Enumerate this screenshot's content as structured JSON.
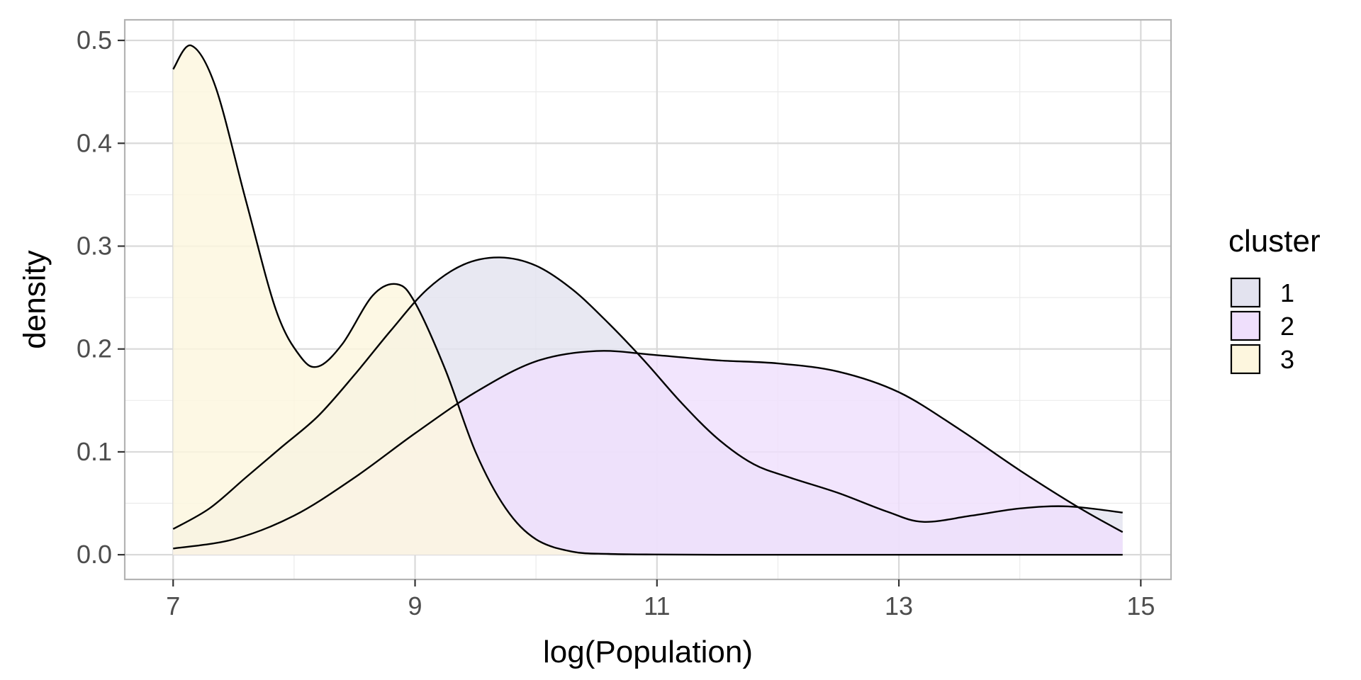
{
  "chart_data": {
    "type": "area",
    "xlabel": "log(Population)",
    "ylabel": "density",
    "xlim": [
      6.6,
      15.25
    ],
    "ylim": [
      -0.024,
      0.52
    ],
    "x_ticks": [
      7,
      9,
      11,
      13,
      15
    ],
    "x_tick_labels": [
      "7",
      "9",
      "11",
      "13",
      "15"
    ],
    "y_ticks": [
      0.0,
      0.1,
      0.2,
      0.3,
      0.4,
      0.5
    ],
    "y_tick_labels": [
      "0.0",
      "0.1",
      "0.2",
      "0.3",
      "0.4",
      "0.5"
    ],
    "grid": true,
    "legend": {
      "title": "cluster",
      "position": "right",
      "entries": [
        "1",
        "2",
        "3"
      ]
    },
    "series": [
      {
        "name": "1",
        "color": "#e3e3ef",
        "x": [
          7.0,
          7.3,
          7.6,
          7.9,
          8.2,
          8.5,
          8.8,
          9.1,
          9.4,
          9.7,
          10.0,
          10.3,
          10.6,
          10.9,
          11.2,
          11.5,
          11.8,
          12.1,
          12.5,
          12.9,
          13.2,
          13.6,
          14.0,
          14.4,
          14.85
        ],
        "y": [
          0.025,
          0.045,
          0.075,
          0.105,
          0.135,
          0.175,
          0.218,
          0.258,
          0.282,
          0.289,
          0.281,
          0.258,
          0.225,
          0.188,
          0.148,
          0.113,
          0.088,
          0.075,
          0.06,
          0.042,
          0.032,
          0.038,
          0.045,
          0.047,
          0.041
        ]
      },
      {
        "name": "2",
        "color": "#efdffc",
        "x": [
          7.0,
          7.5,
          8.0,
          8.5,
          9.0,
          9.5,
          10.0,
          10.5,
          11.0,
          11.5,
          12.0,
          12.5,
          13.0,
          13.5,
          14.0,
          14.5,
          14.85
        ],
        "y": [
          0.006,
          0.015,
          0.038,
          0.075,
          0.118,
          0.158,
          0.188,
          0.198,
          0.194,
          0.189,
          0.186,
          0.178,
          0.158,
          0.122,
          0.082,
          0.045,
          0.022
        ]
      },
      {
        "name": "3",
        "color": "#fdf6de",
        "x": [
          7.0,
          7.15,
          7.35,
          7.6,
          7.85,
          8.05,
          8.2,
          8.4,
          8.65,
          8.85,
          9.0,
          9.25,
          9.5,
          9.75,
          10.0,
          10.3,
          10.6,
          11.0,
          11.5,
          12.0,
          13.0,
          14.0,
          14.85
        ],
        "y": [
          0.472,
          0.495,
          0.455,
          0.345,
          0.238,
          0.193,
          0.183,
          0.205,
          0.252,
          0.263,
          0.245,
          0.18,
          0.1,
          0.045,
          0.015,
          0.003,
          0.0008,
          0.0002,
          0.0,
          0.0,
          0.0,
          0.0,
          0.0
        ]
      }
    ]
  }
}
